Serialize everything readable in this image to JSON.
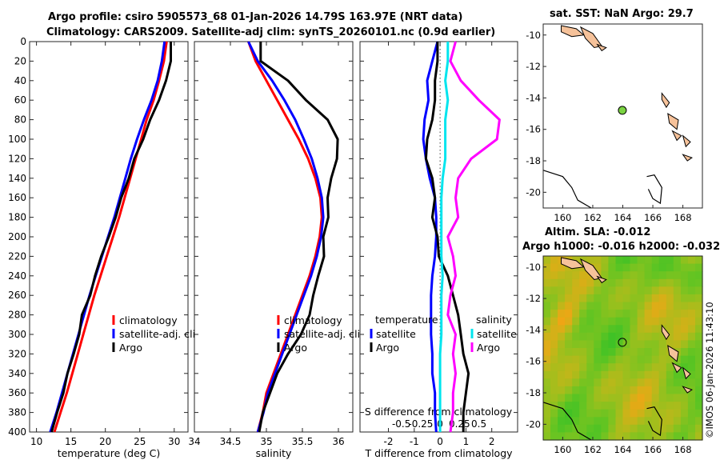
{
  "header": {
    "line1": "Argo profile: csiro 5905573_68 01-Jan-2026 14.79S 163.97E (NRT data)",
    "line2": "Climatology: CARS2009. Satellite-adj clim: synTS_20260101.nc (0.9d earlier)"
  },
  "credit": "©IMOS 06-Jan-2026 11:43:10",
  "colors": {
    "climatology": "#ff0000",
    "satellite": "#0000ff",
    "argo": "#000000",
    "sal_satellite": "#00e5ee",
    "sal_argo": "#ff00ff",
    "land": "#f6c29a",
    "float_marker": "#7bd342"
  },
  "chart_data": [
    {
      "id": "temperature-profile",
      "type": "line",
      "xlabel": "temperature (deg C)",
      "ylabel": "",
      "xlim": [
        9,
        32
      ],
      "ylim": [
        0,
        400
      ],
      "y_reversed": true,
      "xticks": [
        10,
        15,
        20,
        25,
        30
      ],
      "yticks": [
        0,
        20,
        40,
        60,
        80,
        100,
        120,
        140,
        160,
        180,
        200,
        220,
        240,
        260,
        280,
        300,
        320,
        340,
        360,
        380,
        400
      ],
      "legend": "center-right",
      "series": [
        {
          "name": "climatology",
          "color": "#ff0000",
          "x": [
            28.9,
            28.5,
            27.8,
            27.0,
            26.0,
            25.2,
            24.4,
            23.6,
            22.8,
            22.0,
            21.1,
            20.2,
            19.3,
            18.4,
            17.6,
            16.8,
            16.0,
            15.2,
            14.4,
            13.5,
            12.6
          ],
          "y": [
            0,
            20,
            40,
            60,
            80,
            100,
            120,
            140,
            160,
            180,
            200,
            220,
            240,
            260,
            280,
            300,
            320,
            340,
            360,
            380,
            400
          ]
        },
        {
          "name": "satellite-adj. clim",
          "color": "#0000ff",
          "x": [
            28.6,
            28.2,
            27.6,
            26.7,
            25.6,
            24.6,
            23.7,
            22.9,
            22.1,
            21.3,
            20.4,
            19.5,
            18.6,
            17.7,
            16.9,
            16.1,
            15.3,
            14.5,
            13.7,
            12.9,
            12.0
          ],
          "y": [
            0,
            20,
            40,
            60,
            80,
            100,
            120,
            140,
            160,
            180,
            200,
            220,
            240,
            260,
            280,
            300,
            320,
            340,
            360,
            380,
            400
          ]
        },
        {
          "name": "Argo",
          "color": "#000000",
          "x": [
            29.5,
            29.5,
            28.8,
            27.8,
            26.5,
            25.5,
            24.2,
            23.4,
            22.3,
            21.5,
            20.5,
            19.4,
            18.5,
            17.8,
            16.6,
            16.2,
            15.4,
            14.5,
            13.9,
            13.0,
            12.2
          ],
          "y": [
            0,
            20,
            40,
            60,
            80,
            100,
            120,
            140,
            160,
            180,
            200,
            220,
            240,
            260,
            280,
            300,
            320,
            340,
            360,
            380,
            400
          ]
        }
      ]
    },
    {
      "id": "salinity-profile",
      "type": "line",
      "xlabel": "salinity",
      "ylabel": "",
      "xlim": [
        34,
        36.2
      ],
      "ylim": [
        0,
        400
      ],
      "y_reversed": true,
      "xticks": [
        34,
        34.5,
        35,
        35.5,
        36
      ],
      "legend": "center-right",
      "series": [
        {
          "name": "climatology",
          "color": "#ff0000",
          "x": [
            34.75,
            34.85,
            35.0,
            35.15,
            35.3,
            35.45,
            35.58,
            35.68,
            35.75,
            35.77,
            35.74,
            35.68,
            35.6,
            35.5,
            35.4,
            35.3,
            35.2,
            35.1,
            35.0,
            34.95,
            34.88
          ],
          "y": [
            0,
            20,
            40,
            60,
            80,
            100,
            120,
            140,
            160,
            180,
            200,
            220,
            240,
            260,
            280,
            300,
            320,
            340,
            360,
            380,
            400
          ]
        },
        {
          "name": "satellite-adj. clim",
          "color": "#0000ff",
          "x": [
            34.75,
            34.88,
            35.08,
            35.25,
            35.4,
            35.52,
            35.63,
            35.71,
            35.77,
            35.79,
            35.76,
            35.7,
            35.62,
            35.52,
            35.42,
            35.32,
            35.22,
            35.12,
            35.02,
            34.96,
            34.88
          ],
          "y": [
            0,
            20,
            40,
            60,
            80,
            100,
            120,
            140,
            160,
            180,
            200,
            220,
            240,
            260,
            280,
            300,
            320,
            340,
            360,
            380,
            400
          ]
        },
        {
          "name": "Argo",
          "color": "#000000",
          "x": [
            34.92,
            34.92,
            35.3,
            35.55,
            35.85,
            35.99,
            35.98,
            35.9,
            35.85,
            35.86,
            35.79,
            35.8,
            35.72,
            35.65,
            35.6,
            35.48,
            35.3,
            35.15,
            35.05,
            34.95,
            34.9
          ],
          "y": [
            0,
            20,
            40,
            60,
            80,
            100,
            120,
            140,
            160,
            180,
            200,
            220,
            240,
            260,
            280,
            300,
            320,
            340,
            360,
            380,
            400
          ]
        }
      ]
    },
    {
      "id": "difference-profile",
      "type": "line",
      "xlabel": "T difference from climatology",
      "xlabel2": "S difference from climatology",
      "xlim": [
        -3.1,
        3.0
      ],
      "ylim": [
        0,
        400
      ],
      "y_reversed": true,
      "xticks": [
        -2,
        -1,
        0,
        1,
        2
      ],
      "xticks2": [
        -0.5,
        -0.25,
        0,
        0.25,
        0.5
      ],
      "legend_temperature": {
        "title": "temperature",
        "items": [
          "satellite",
          "Argo"
        ]
      },
      "legend_salinity": {
        "title": "salinity",
        "items": [
          "satellite",
          "Argo"
        ]
      },
      "series": [
        {
          "name": "temperature satellite",
          "color": "#0000ff",
          "x": [
            -0.1,
            -0.3,
            -0.5,
            -0.45,
            -0.6,
            -0.65,
            -0.55,
            -0.4,
            -0.2,
            -0.15,
            -0.15,
            -0.2,
            -0.3,
            -0.35,
            -0.35,
            -0.35,
            -0.3,
            -0.3,
            -0.2,
            -0.2,
            -0.15
          ],
          "y": [
            0,
            20,
            40,
            60,
            80,
            100,
            120,
            140,
            160,
            180,
            200,
            220,
            240,
            260,
            280,
            300,
            320,
            340,
            360,
            380,
            400
          ]
        },
        {
          "name": "temperature Argo",
          "color": "#000000",
          "x": [
            -0.1,
            -0.1,
            -0.2,
            -0.2,
            -0.3,
            -0.5,
            -0.55,
            -0.3,
            -0.2,
            -0.3,
            -0.1,
            -0.05,
            0.3,
            0.5,
            0.7,
            0.8,
            0.9,
            1.1,
            1.0,
            0.9,
            0.9
          ],
          "y": [
            0,
            20,
            40,
            60,
            80,
            100,
            120,
            140,
            160,
            180,
            200,
            220,
            240,
            260,
            280,
            300,
            320,
            340,
            360,
            380,
            400
          ]
        },
        {
          "name": "salinity satellite",
          "color": "#00e5ee",
          "x": [
            0.3,
            0.3,
            0.2,
            0.3,
            0.2,
            0.2,
            0.2,
            0.1,
            0.05,
            0.05,
            0.05,
            0.05,
            0.1,
            0.05,
            0.05,
            0.05,
            0.0,
            0.0,
            0.0,
            0.0,
            0.0
          ],
          "y": [
            0,
            20,
            40,
            60,
            80,
            100,
            120,
            140,
            160,
            180,
            200,
            220,
            240,
            260,
            280,
            300,
            320,
            340,
            360,
            380,
            400
          ]
        },
        {
          "name": "salinity Argo",
          "color": "#ff00ff",
          "x": [
            0.6,
            0.4,
            0.8,
            1.5,
            2.3,
            2.2,
            1.2,
            0.7,
            0.6,
            0.7,
            0.3,
            0.5,
            0.6,
            0.4,
            0.3,
            0.6,
            0.5,
            0.6,
            0.5,
            0.5,
            0.4
          ],
          "y": [
            0,
            20,
            40,
            60,
            80,
            100,
            120,
            140,
            160,
            180,
            200,
            220,
            240,
            260,
            280,
            300,
            320,
            340,
            360,
            380,
            400
          ]
        }
      ]
    },
    {
      "id": "sst-map",
      "type": "map",
      "title": "sat. SST: NaN Argo: 29.7",
      "xlim": [
        158.7,
        169.3
      ],
      "ylim": [
        -21,
        -9.3
      ],
      "xticks": [
        160,
        162,
        164,
        166,
        168
      ],
      "yticks": [
        -10,
        -12,
        -14,
        -16,
        -18,
        -20
      ],
      "float_position": {
        "lon": 163.97,
        "lat": -14.79
      }
    },
    {
      "id": "sla-map",
      "type": "heatmap",
      "title_line1": "Altim. SLA: -0.012",
      "title_line2": "Argo h1000: -0.016 h2000: -0.032",
      "xlim": [
        158.7,
        169.3
      ],
      "ylim": [
        -21,
        -9.3
      ],
      "xticks": [
        160,
        162,
        164,
        166,
        168
      ],
      "yticks": [
        -10,
        -12,
        -14,
        -16,
        -18,
        -20
      ],
      "float_position": {
        "lon": 163.97,
        "lat": -14.79
      }
    }
  ]
}
